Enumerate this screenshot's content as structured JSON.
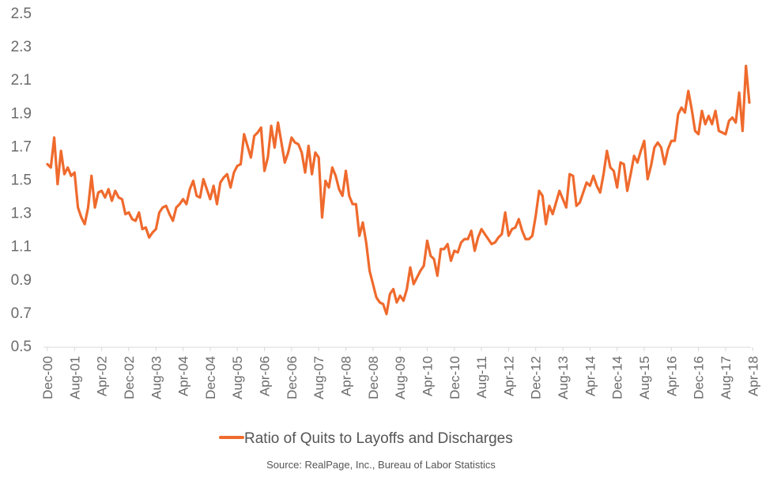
{
  "chart_data": {
    "type": "line",
    "title": "",
    "xlabel": "",
    "ylabel": "",
    "ylim": [
      0.5,
      2.5
    ],
    "yticks": [
      "0.5",
      "0.7",
      "0.9",
      "1.1",
      "1.3",
      "1.5",
      "1.7",
      "1.9",
      "2.1",
      "2.3",
      "2.5"
    ],
    "x_tick_labels": [
      "Dec-00",
      "Aug-01",
      "Apr-02",
      "Dec-02",
      "Aug-03",
      "Apr-04",
      "Dec-04",
      "Aug-05",
      "Apr-06",
      "Dec-06",
      "Aug-07",
      "Apr-08",
      "Dec-08",
      "Aug-09",
      "Apr-10",
      "Dec-10",
      "Aug-11",
      "Apr-12",
      "Dec-12",
      "Aug-13",
      "Apr-14",
      "Dec-14",
      "Aug-15",
      "Apr-16",
      "Dec-16",
      "Aug-17",
      "Apr-18"
    ],
    "x_start": "Dec-00",
    "x_end": "May-18",
    "grid": false,
    "legend_position": "bottom",
    "colors": {
      "series": "#ef6a2d",
      "axis": "#d9d9d9",
      "text": "#6b6b6b"
    },
    "series": [
      {
        "name": "Ratio of Quits to Layoffs and Discharges",
        "values": [
          1.59,
          1.57,
          1.75,
          1.47,
          1.67,
          1.53,
          1.57,
          1.52,
          1.54,
          1.33,
          1.27,
          1.23,
          1.33,
          1.52,
          1.33,
          1.42,
          1.43,
          1.39,
          1.44,
          1.37,
          1.43,
          1.39,
          1.38,
          1.29,
          1.3,
          1.26,
          1.25,
          1.3,
          1.2,
          1.21,
          1.15,
          1.18,
          1.2,
          1.3,
          1.33,
          1.34,
          1.29,
          1.25,
          1.33,
          1.35,
          1.38,
          1.35,
          1.44,
          1.49,
          1.4,
          1.39,
          1.5,
          1.44,
          1.38,
          1.46,
          1.35,
          1.48,
          1.51,
          1.53,
          1.45,
          1.54,
          1.58,
          1.59,
          1.77,
          1.7,
          1.63,
          1.76,
          1.78,
          1.81,
          1.55,
          1.63,
          1.82,
          1.69,
          1.84,
          1.72,
          1.6,
          1.66,
          1.75,
          1.72,
          1.71,
          1.66,
          1.54,
          1.7,
          1.53,
          1.66,
          1.63,
          1.27,
          1.49,
          1.45,
          1.57,
          1.52,
          1.44,
          1.4,
          1.55,
          1.4,
          1.35,
          1.35,
          1.16,
          1.24,
          1.12,
          0.95,
          0.87,
          0.79,
          0.76,
          0.75,
          0.69,
          0.81,
          0.84,
          0.76,
          0.8,
          0.77,
          0.84,
          0.97,
          0.87,
          0.91,
          0.95,
          0.98,
          1.13,
          1.04,
          1.02,
          0.92,
          1.08,
          1.08,
          1.11,
          1.01,
          1.07,
          1.06,
          1.12,
          1.14,
          1.14,
          1.19,
          1.07,
          1.15,
          1.2,
          1.17,
          1.14,
          1.11,
          1.12,
          1.15,
          1.17,
          1.3,
          1.16,
          1.2,
          1.21,
          1.26,
          1.19,
          1.14,
          1.14,
          1.16,
          1.28,
          1.43,
          1.4,
          1.23,
          1.34,
          1.29,
          1.36,
          1.43,
          1.38,
          1.33,
          1.53,
          1.52,
          1.34,
          1.36,
          1.42,
          1.48,
          1.46,
          1.52,
          1.46,
          1.42,
          1.53,
          1.67,
          1.57,
          1.55,
          1.45,
          1.6,
          1.59,
          1.43,
          1.53,
          1.64,
          1.6,
          1.67,
          1.73,
          1.5,
          1.58,
          1.69,
          1.72,
          1.69,
          1.59,
          1.68,
          1.73,
          1.73,
          1.89,
          1.93,
          1.9,
          2.03,
          1.92,
          1.79,
          1.77,
          1.91,
          1.83,
          1.88,
          1.83,
          1.91,
          1.79,
          1.78,
          1.77,
          1.85,
          1.87,
          1.84,
          2.02,
          1.79,
          2.18,
          1.96
        ]
      }
    ]
  },
  "legend": {
    "label": "Ratio of Quits to Layoffs and Discharges"
  },
  "footer": {
    "source": "Source: RealPage, Inc., Bureau of Labor Statistics"
  }
}
